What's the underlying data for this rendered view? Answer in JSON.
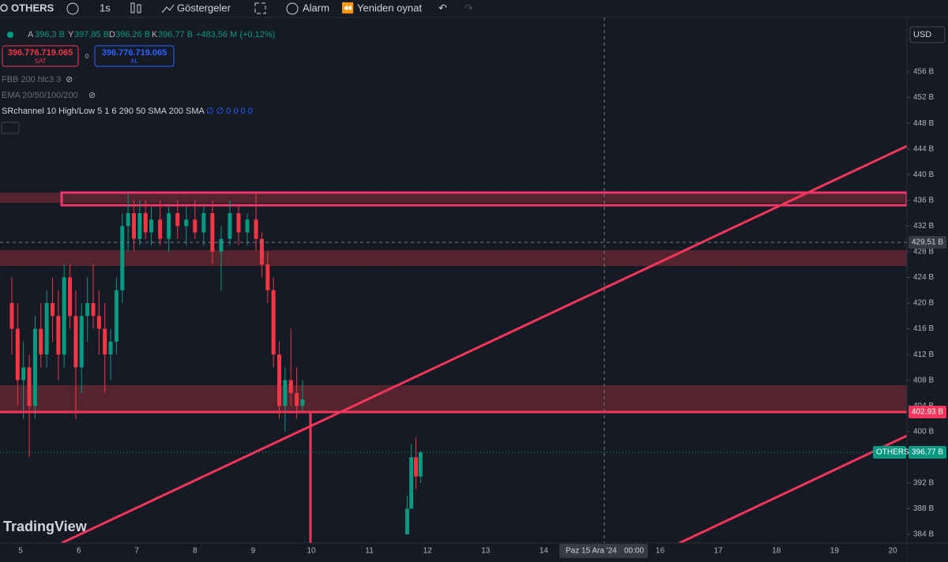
{
  "toolbar": {
    "symbol": "OTHERS",
    "interval": "1s",
    "indicators": "Göstergeler",
    "alert": "Alarm",
    "replay": "Yeniden oynat"
  },
  "legend": {
    "o_key": "A",
    "o": "396,3 B",
    "h_key": "Y",
    "h": "397,85 B",
    "l_key": "D",
    "l": "396,26 B",
    "c_key": "K",
    "c": "396,77 B",
    "change": "+483,56 M (+0,12%)"
  },
  "trade": {
    "sell_price": "396.776.719.065",
    "sell": "SAT",
    "spread": "0",
    "buy_price": "396.776.719.065",
    "buy": "AL"
  },
  "indicators": [
    "FBB 200 hlc3 3",
    "EMA 20/50/100/200",
    "SRchannel 10 High/Low 5 1 6 290 50 SMA 200 SMA"
  ],
  "sr_values": "∅ ∅ 0 0 0 0",
  "currency": "USD",
  "logo": "TradingView",
  "price_axis": {
    "ticks": [
      {
        "value": 456,
        "label": "456 B"
      },
      {
        "value": 452,
        "label": "452 B"
      },
      {
        "value": 448,
        "label": "448 B"
      },
      {
        "value": 444,
        "label": "444 B"
      },
      {
        "value": 440,
        "label": "440 B"
      },
      {
        "value": 436,
        "label": "436 B"
      },
      {
        "value": 432,
        "label": "432 B"
      },
      {
        "value": 428,
        "label": "428 B"
      },
      {
        "value": 424,
        "label": "424 B"
      },
      {
        "value": 420,
        "label": "420 B"
      },
      {
        "value": 416,
        "label": "416 B"
      },
      {
        "value": 412,
        "label": "412 B"
      },
      {
        "value": 408,
        "label": "408 B"
      },
      {
        "value": 404,
        "label": "404 B"
      },
      {
        "value": 400,
        "label": "400 B"
      },
      {
        "value": 392,
        "label": "392 B"
      },
      {
        "value": 388,
        "label": "388 B"
      },
      {
        "value": 384,
        "label": "384 B"
      }
    ],
    "crosshair_label": "429,51 B",
    "level_label": "402,93 B",
    "symbol_label": "OTHERS",
    "last_label": "396,77 B"
  },
  "time_axis": {
    "ticks": [
      5,
      6,
      7,
      8,
      9,
      10,
      11,
      12,
      13,
      14,
      16,
      17,
      18,
      19,
      20
    ],
    "crosshair_label": "Paz 15 Ara '24",
    "crosshair_time": "00:00"
  },
  "candles": [
    {
      "x": 4.85,
      "open": 420,
      "high": 424,
      "low": 412,
      "close": 416
    },
    {
      "x": 4.95,
      "open": 416,
      "high": 420,
      "low": 404,
      "close": 408
    },
    {
      "x": 5.05,
      "open": 408,
      "high": 414,
      "low": 402,
      "close": 410
    },
    {
      "x": 5.15,
      "open": 410,
      "high": 412,
      "low": 396,
      "close": 404
    },
    {
      "x": 5.25,
      "open": 404,
      "high": 418,
      "low": 402,
      "close": 416
    },
    {
      "x": 5.35,
      "open": 416,
      "high": 420,
      "low": 410,
      "close": 412
    },
    {
      "x": 5.45,
      "open": 412,
      "high": 422,
      "low": 410,
      "close": 420
    },
    {
      "x": 5.55,
      "open": 420,
      "high": 424,
      "low": 414,
      "close": 418
    },
    {
      "x": 5.65,
      "open": 418,
      "high": 422,
      "low": 408,
      "close": 412
    },
    {
      "x": 5.75,
      "open": 412,
      "high": 426,
      "low": 410,
      "close": 424
    },
    {
      "x": 5.85,
      "open": 424,
      "high": 426,
      "low": 416,
      "close": 418
    },
    {
      "x": 5.95,
      "open": 418,
      "high": 422,
      "low": 402,
      "close": 410
    },
    {
      "x": 6.05,
      "open": 410,
      "high": 420,
      "low": 406,
      "close": 418
    },
    {
      "x": 6.15,
      "open": 418,
      "high": 424,
      "low": 414,
      "close": 420
    },
    {
      "x": 6.25,
      "open": 420,
      "high": 426,
      "low": 416,
      "close": 418
    },
    {
      "x": 6.35,
      "open": 418,
      "high": 422,
      "low": 412,
      "close": 416
    },
    {
      "x": 6.45,
      "open": 416,
      "high": 420,
      "low": 406,
      "close": 412
    },
    {
      "x": 6.55,
      "open": 412,
      "high": 416,
      "low": 408,
      "close": 414
    },
    {
      "x": 6.65,
      "open": 414,
      "high": 424,
      "low": 412,
      "close": 422
    },
    {
      "x": 6.75,
      "open": 422,
      "high": 434,
      "low": 420,
      "close": 432
    },
    {
      "x": 6.85,
      "open": 432,
      "high": 437,
      "low": 428,
      "close": 434
    },
    {
      "x": 6.95,
      "open": 434,
      "high": 436,
      "low": 428,
      "close": 430
    },
    {
      "x": 7.05,
      "open": 430,
      "high": 436,
      "low": 429,
      "close": 434
    },
    {
      "x": 7.15,
      "open": 434,
      "high": 436,
      "low": 430,
      "close": 431
    },
    {
      "x": 7.25,
      "open": 431,
      "high": 435,
      "low": 429,
      "close": 433
    },
    {
      "x": 7.4,
      "open": 433,
      "high": 436,
      "low": 429,
      "close": 430
    },
    {
      "x": 7.55,
      "open": 430,
      "high": 435,
      "low": 428,
      "close": 434
    },
    {
      "x": 7.7,
      "open": 434,
      "high": 436,
      "low": 430,
      "close": 432
    },
    {
      "x": 7.85,
      "open": 432,
      "high": 435,
      "low": 429,
      "close": 433
    },
    {
      "x": 8.0,
      "open": 433,
      "high": 436,
      "low": 430,
      "close": 431
    },
    {
      "x": 8.15,
      "open": 431,
      "high": 435,
      "low": 429,
      "close": 434
    },
    {
      "x": 8.3,
      "open": 434,
      "high": 436,
      "low": 426,
      "close": 428
    },
    {
      "x": 8.45,
      "open": 428,
      "high": 432,
      "low": 422,
      "close": 430
    },
    {
      "x": 8.6,
      "open": 430,
      "high": 436,
      "low": 429,
      "close": 434
    },
    {
      "x": 8.75,
      "open": 434,
      "high": 435,
      "low": 429,
      "close": 431
    },
    {
      "x": 8.9,
      "open": 431,
      "high": 434,
      "low": 429,
      "close": 433
    },
    {
      "x": 9.05,
      "open": 433,
      "high": 437,
      "low": 428,
      "close": 430
    },
    {
      "x": 9.15,
      "open": 430,
      "high": 431,
      "low": 424,
      "close": 426
    },
    {
      "x": 9.25,
      "open": 426,
      "high": 428,
      "low": 420,
      "close": 422
    },
    {
      "x": 9.35,
      "open": 422,
      "high": 424,
      "low": 410,
      "close": 412
    },
    {
      "x": 9.45,
      "open": 412,
      "high": 414,
      "low": 402,
      "close": 404
    },
    {
      "x": 9.55,
      "open": 404,
      "high": 410,
      "low": 400,
      "close": 408
    },
    {
      "x": 9.65,
      "open": 408,
      "high": 416,
      "low": 404,
      "close": 406
    },
    {
      "x": 9.75,
      "open": 406,
      "high": 410,
      "low": 402,
      "close": 404
    },
    {
      "x": 9.85,
      "open": 404,
      "high": 408,
      "low": 403,
      "close": 405
    },
    {
      "x": 11.65,
      "open": 384,
      "high": 390,
      "low": 384,
      "close": 388
    },
    {
      "x": 11.72,
      "open": 388,
      "high": 398,
      "low": 388,
      "close": 396
    },
    {
      "x": 11.8,
      "open": 396,
      "high": 399,
      "low": 391,
      "close": 393
    },
    {
      "x": 11.88,
      "open": 393,
      "high": 397,
      "low": 392,
      "close": 396.77
    }
  ]
}
